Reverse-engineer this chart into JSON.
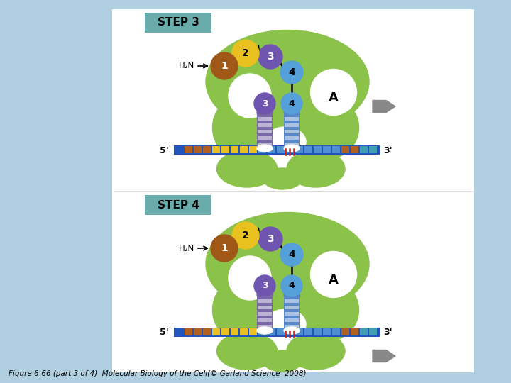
{
  "bg_color": "#b0cfe0",
  "panel_color": "#ffffff",
  "green_light": "#8bc34a",
  "green_mid": "#6da832",
  "green_dark": "#4a8020",
  "blue_bb": "#2255bb",
  "brown_ball": "#a05818",
  "yellow_ball": "#e8c020",
  "purple_ball": "#7055b0",
  "lightblue_ball": "#55a0d8",
  "purple_pillar": "#7868a8",
  "blue_pillar": "#5888c8",
  "teal_box": "#6aabab",
  "arrow_gray": "#888888",
  "red_line": "#cc2020",
  "white": "#ffffff",
  "black": "#000000",
  "caption": "Figure 6-66 (part 3 of 4)  Molecular Biology of the Cell(© Garland Science  2008)",
  "step3": "STEP 3",
  "step4": "STEP 4",
  "nuc_brown": "#b06020",
  "nuc_yellow": "#e8c020",
  "nuc_blue": "#5090d0",
  "nuc_teal": "#40a0b0"
}
